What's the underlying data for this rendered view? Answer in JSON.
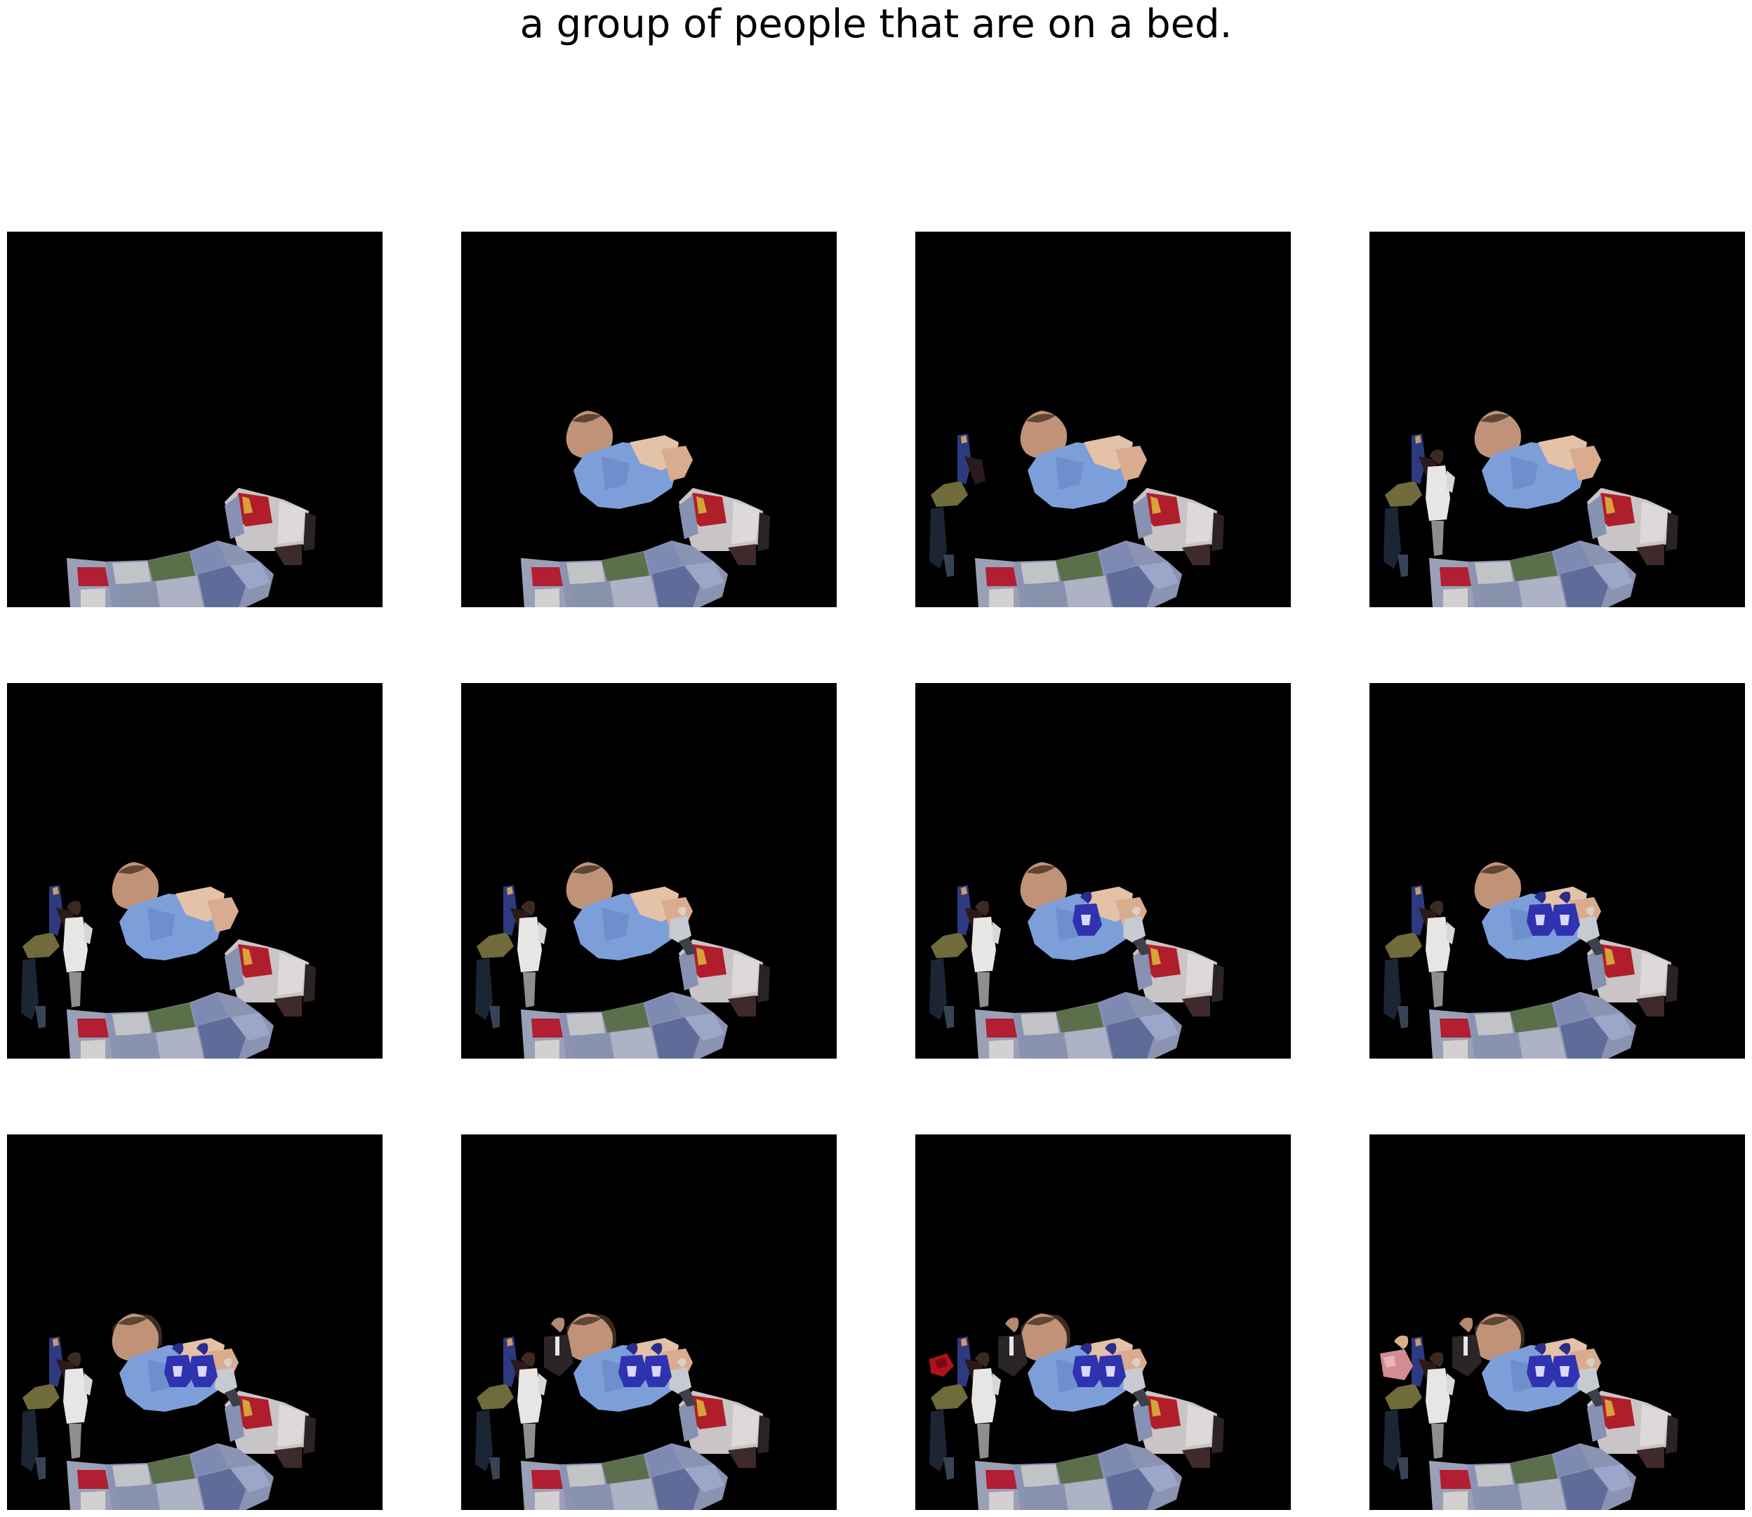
{
  "figure": {
    "caption": "a group of people that are on a bed.",
    "layout": {
      "rows": 3,
      "cols": 4
    },
    "background_color": "#000000",
    "panels": [
      {
        "step": 1,
        "layers": [
          "bed"
        ]
      },
      {
        "step": 2,
        "layers": [
          "bed",
          "man-lying"
        ]
      },
      {
        "step": 3,
        "layers": [
          "bed",
          "man-lying",
          "person-left-bending"
        ]
      },
      {
        "step": 4,
        "layers": [
          "bed",
          "man-lying",
          "person-left-bending",
          "person-white-shirt"
        ]
      },
      {
        "step": 5,
        "layers": [
          "bed",
          "man-lying",
          "person-left-bending",
          "person-white-shirt"
        ]
      },
      {
        "step": 6,
        "layers": [
          "bed",
          "man-lying",
          "person-left-bending",
          "person-white-shirt",
          "person-small-right"
        ]
      },
      {
        "step": 7,
        "layers": [
          "bed",
          "man-lying",
          "person-left-bending",
          "person-white-shirt",
          "person-small-right",
          "person-blue-1"
        ]
      },
      {
        "step": 8,
        "layers": [
          "bed",
          "man-lying",
          "person-left-bending",
          "person-white-shirt",
          "person-small-right",
          "person-blue-1",
          "person-blue-2"
        ]
      },
      {
        "step": 9,
        "layers": [
          "bed",
          "man-lying",
          "person-left-bending",
          "person-white-shirt",
          "person-small-right",
          "person-blue-1",
          "person-blue-2",
          "dark-patch"
        ]
      },
      {
        "step": 10,
        "layers": [
          "bed",
          "man-lying",
          "person-left-bending",
          "person-white-shirt",
          "person-small-right",
          "person-blue-1",
          "person-blue-2",
          "dark-patch",
          "person-suit"
        ]
      },
      {
        "step": 11,
        "layers": [
          "bed",
          "man-lying",
          "person-left-bending",
          "person-white-shirt",
          "person-small-right",
          "person-blue-1",
          "person-blue-2",
          "dark-patch",
          "person-suit",
          "red-object"
        ]
      },
      {
        "step": 12,
        "layers": [
          "bed",
          "man-lying",
          "person-left-bending",
          "person-white-shirt",
          "person-small-right",
          "person-blue-1",
          "person-blue-2",
          "dark-patch",
          "person-suit",
          "person-pink"
        ]
      }
    ]
  }
}
